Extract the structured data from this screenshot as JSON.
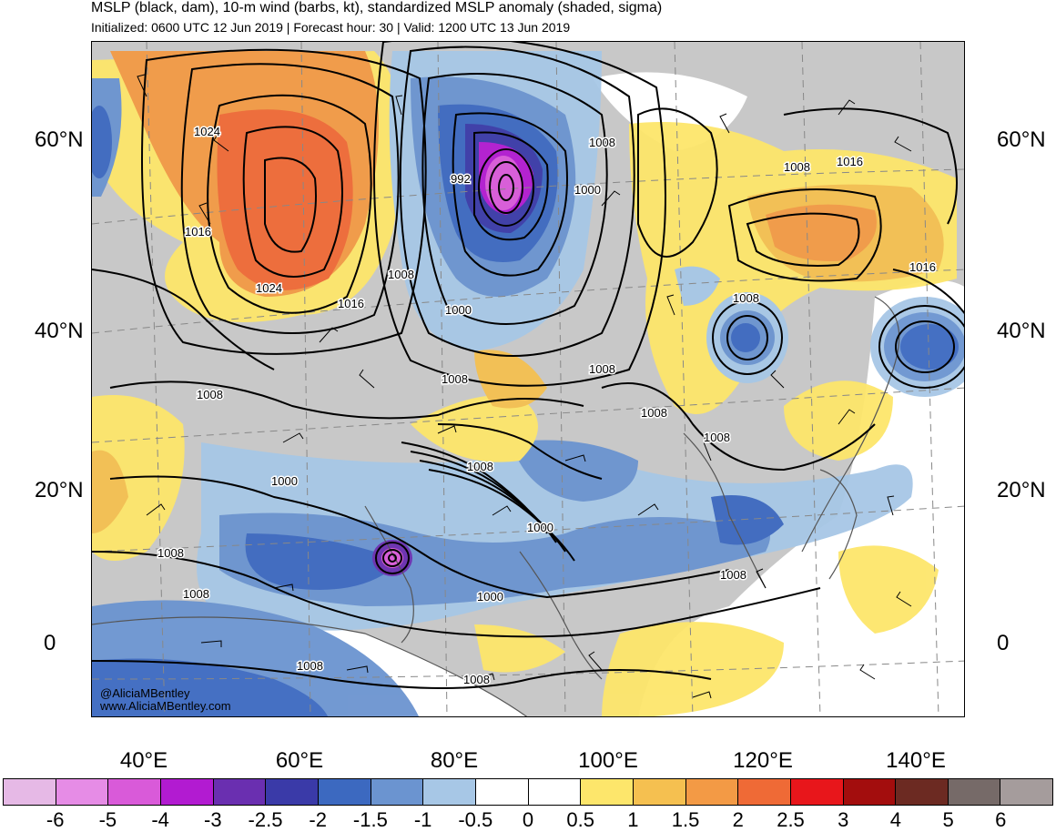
{
  "header": {
    "title": "MSLP (black, dam), 10-m wind (barbs, kt), standardized MSLP anomaly (shaded, sigma)",
    "subtitle": "Initialized: 0600 UTC 12 Jun 2019 | Forecast hour: 30 | Valid: 1200 UTC 13 Jun 2019"
  },
  "axes": {
    "lat_labels_left": [
      "60°N",
      "40°N",
      "20°N",
      "0"
    ],
    "lat_labels_right": [
      "60°N",
      "40°N",
      "20°N",
      "0"
    ],
    "lon_labels": [
      "40°E",
      "60°E",
      "80°E",
      "100°E",
      "120°E",
      "140°E"
    ]
  },
  "credits": [
    "@AliciaMBentley",
    "www.AliciaMBentley.com"
  ],
  "colorbar": {
    "colors": [
      "#e6b9e6",
      "#e68ce6",
      "#d95ad9",
      "#b21bd1",
      "#6a2fb0",
      "#3a3aa8",
      "#3c69c0",
      "#6b94d0",
      "#a7c7e6",
      "#ffffff",
      "#ffffff",
      "#fde66b",
      "#f5c050",
      "#f39a45",
      "#ef6a36",
      "#e8161b",
      "#a30d0d",
      "#6c2a22",
      "#766a68",
      "#a59c9c"
    ],
    "ticks": [
      "-6",
      "-5",
      "-4",
      "-3",
      "-2.5",
      "-2",
      "-1.5",
      "-1",
      "-0.5",
      "0",
      "0.5",
      "1",
      "1.5",
      "2",
      "2.5",
      "3",
      "4",
      "5",
      "6"
    ]
  },
  "contour_labels": [
    "1024",
    "1016",
    "1024",
    "1016",
    "1008",
    "992",
    "1000",
    "1000",
    "1008",
    "1008",
    "1016",
    "1016",
    "1008",
    "1008",
    "1008",
    "1008",
    "1008",
    "1000",
    "1008",
    "1000",
    "1008",
    "1008",
    "1000",
    "1008",
    "1008",
    "1008",
    "1008"
  ],
  "shading_palette": {
    "land": "#c8c8c8",
    "neg_strong": "#6a2fb0",
    "neg_core": "#d02ad9",
    "neg_mid": "#3c69c0",
    "neg_light": "#a7c7e6",
    "pos_light": "#fde66b",
    "pos_mid": "#f5c050",
    "pos_strong": "#ef6a36"
  }
}
